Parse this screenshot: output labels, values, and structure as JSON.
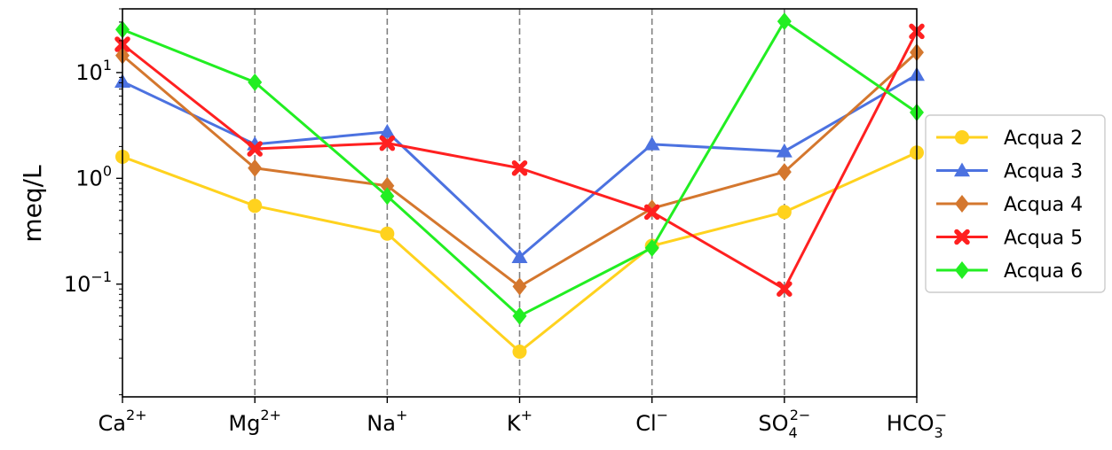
{
  "chart_data": {
    "type": "line",
    "title": "",
    "xlabel": "",
    "ylabel": "meq/L",
    "yscale": "log",
    "ylim": [
      0.0086,
      40
    ],
    "grid": "vertical dashed at each category",
    "legend_placement": "right (outside plot)",
    "categories": [
      {
        "base": "Ca",
        "sup": "2+",
        "sub": ""
      },
      {
        "base": "Mg",
        "sup": "2+",
        "sub": ""
      },
      {
        "base": "Na",
        "sup": "+",
        "sub": ""
      },
      {
        "base": "K",
        "sup": "+",
        "sub": ""
      },
      {
        "base": "Cl",
        "sup": "−",
        "sub": ""
      },
      {
        "base": "SO",
        "sup": "2−",
        "sub": "4"
      },
      {
        "base": "HCO",
        "sup": "−",
        "sub": "3"
      }
    ],
    "y_ticks": [
      {
        "value": 10,
        "base": "10",
        "exp": "1"
      },
      {
        "value": 1,
        "base": "10",
        "exp": "0"
      },
      {
        "value": 0.1,
        "base": "10",
        "exp": "−1"
      }
    ],
    "series": [
      {
        "name": "Acqua 2",
        "color": "#FFD21E",
        "marker": "circle",
        "values": [
          1.6,
          0.55,
          0.3,
          0.023,
          0.23,
          0.48,
          1.75
        ]
      },
      {
        "name": "Acqua 3",
        "color": "#4C72E0",
        "marker": "triangle",
        "values": [
          8.2,
          2.1,
          2.75,
          0.18,
          2.1,
          1.8,
          9.5
        ]
      },
      {
        "name": "Acqua 4",
        "color": "#D4772E",
        "marker": "diamond",
        "values": [
          14.5,
          1.25,
          0.85,
          0.095,
          0.52,
          1.15,
          15.5
        ]
      },
      {
        "name": "Acqua 5",
        "color": "#FF2020",
        "marker": "x",
        "values": [
          18.5,
          1.9,
          2.15,
          1.25,
          0.48,
          0.09,
          24.5
        ]
      },
      {
        "name": "Acqua 6",
        "color": "#22EE22",
        "marker": "diamond",
        "values": [
          25.5,
          8.1,
          0.68,
          0.05,
          0.22,
          30.5,
          4.2
        ]
      }
    ]
  }
}
